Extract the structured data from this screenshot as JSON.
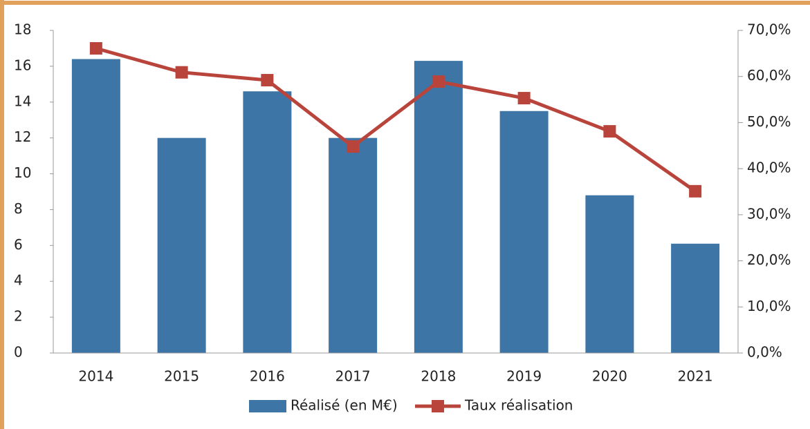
{
  "chart_data": {
    "type": "bar",
    "categories": [
      "2014",
      "2015",
      "2016",
      "2017",
      "2018",
      "2019",
      "2020",
      "2021"
    ],
    "series": [
      {
        "name": "Réalisé (en M€)",
        "type": "bar",
        "axis": "y",
        "color": "#3d76a6",
        "values": [
          16.4,
          12.0,
          14.6,
          12.0,
          16.3,
          13.5,
          8.8,
          6.1
        ]
      },
      {
        "name": "Taux réalisation",
        "type": "line",
        "axis": "y2",
        "color": "#b9443c",
        "values": [
          66.1,
          60.9,
          59.2,
          44.8,
          58.9,
          55.3,
          48.1,
          35.1
        ]
      }
    ],
    "ylim": [
      0,
      18
    ],
    "yticks": [
      0,
      2,
      4,
      6,
      8,
      10,
      12,
      14,
      16,
      18
    ],
    "y2lim": [
      0,
      70
    ],
    "y2ticks": [
      {
        "value": 0,
        "label": "0,0%"
      },
      {
        "value": 10,
        "label": "10,0%"
      },
      {
        "value": 20,
        "label": "20,0%"
      },
      {
        "value": 30,
        "label": "30,0%"
      },
      {
        "value": 40,
        "label": "40,0%"
      },
      {
        "value": 50,
        "label": "50,0%"
      },
      {
        "value": 60,
        "label": "60,0%"
      },
      {
        "value": 70,
        "label": "70,0%"
      }
    ],
    "legend": "bottom"
  }
}
